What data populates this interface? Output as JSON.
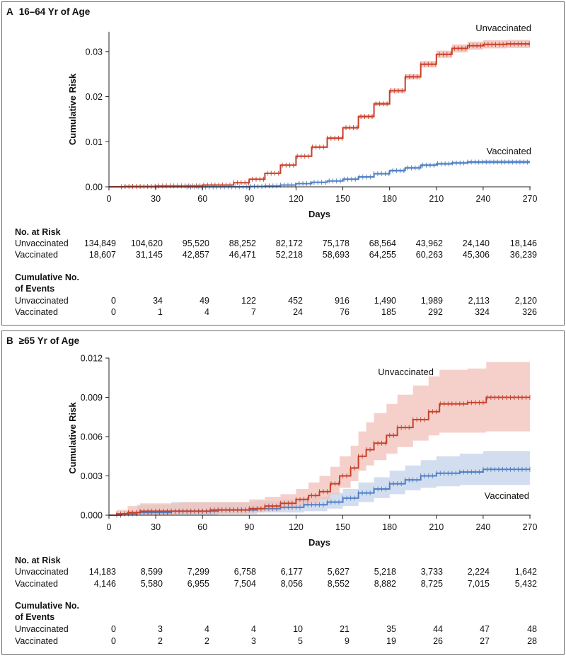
{
  "colors": {
    "unvaccinated": "#c8402a",
    "unvaccinated_band": "#f2c0b8",
    "vaccinated": "#4f7fc4",
    "vaccinated_band": "#c3d3ea",
    "axis": "#222222",
    "border": "#6e6e6e"
  },
  "panels": [
    {
      "letter": "A",
      "title": "16–64 Yr of Age",
      "risk_header": "No. at Risk",
      "events_header_1": "Cumulative No.",
      "events_header_2": "of Events",
      "rows_at_risk": [
        {
          "label": "Unvaccinated",
          "values": [
            "134,849",
            "104,620",
            "95,520",
            "88,252",
            "82,172",
            "75,178",
            "68,564",
            "43,962",
            "24,140",
            "18,146"
          ]
        },
        {
          "label": "Vaccinated",
          "values": [
            "18,607",
            "31,145",
            "42,857",
            "46,471",
            "52,218",
            "58,693",
            "64,255",
            "60,263",
            "45,306",
            "36,239"
          ]
        }
      ],
      "rows_events": [
        {
          "label": "Unvaccinated",
          "values": [
            "0",
            "34",
            "49",
            "122",
            "452",
            "916",
            "1,490",
            "1,989",
            "2,113",
            "2,120"
          ]
        },
        {
          "label": "Vaccinated",
          "values": [
            "0",
            "1",
            "4",
            "7",
            "24",
            "76",
            "185",
            "292",
            "324",
            "326"
          ]
        }
      ]
    },
    {
      "letter": "B",
      "title": "≥65 Yr of Age",
      "risk_header": "No. at Risk",
      "events_header_1": "Cumulative No.",
      "events_header_2": "of Events",
      "rows_at_risk": [
        {
          "label": "Unvaccinated",
          "values": [
            "14,183",
            "8,599",
            "7,299",
            "6,758",
            "6,177",
            "5,627",
            "5,218",
            "3,733",
            "2,224",
            "1,642"
          ]
        },
        {
          "label": "Vaccinated",
          "values": [
            "4,146",
            "5,580",
            "6,955",
            "7,504",
            "8,056",
            "8,552",
            "8,882",
            "8,725",
            "7,015",
            "5,432"
          ]
        }
      ],
      "rows_events": [
        {
          "label": "Unvaccinated",
          "values": [
            "0",
            "3",
            "4",
            "4",
            "10",
            "21",
            "35",
            "44",
            "47",
            "48"
          ]
        },
        {
          "label": "Vaccinated",
          "values": [
            "0",
            "2",
            "2",
            "3",
            "5",
            "9",
            "19",
            "26",
            "27",
            "28"
          ]
        }
      ]
    }
  ],
  "chart_data": [
    {
      "type": "line",
      "step": true,
      "xlabel": "Days",
      "ylabel": "Cumulative Risk",
      "xlim": [
        0,
        270
      ],
      "ylim": [
        0,
        0.035
      ],
      "xticks": [
        0,
        30,
        60,
        90,
        120,
        150,
        180,
        210,
        240,
        270
      ],
      "yticks": [
        0.0,
        0.01,
        0.02,
        0.03
      ],
      "ytick_labels": [
        "0.00",
        "0.01",
        "0.02",
        "0.03"
      ],
      "series": [
        {
          "name": "Unvaccinated",
          "x": [
            0,
            10,
            30,
            60,
            80,
            90,
            100,
            110,
            120,
            130,
            140,
            150,
            160,
            170,
            180,
            190,
            200,
            210,
            220,
            230,
            240,
            255,
            270
          ],
          "y": [
            0,
            0.0001,
            0.0002,
            0.0004,
            0.0009,
            0.0017,
            0.003,
            0.0048,
            0.0068,
            0.0088,
            0.0108,
            0.0131,
            0.0156,
            0.0184,
            0.0213,
            0.0244,
            0.0272,
            0.0294,
            0.0307,
            0.0313,
            0.0316,
            0.0317,
            0.0317
          ],
          "lower": [
            0,
            0.0001,
            0.0002,
            0.0004,
            0.0009,
            0.0016,
            0.0029,
            0.0046,
            0.0066,
            0.0086,
            0.0105,
            0.0128,
            0.0152,
            0.018,
            0.0208,
            0.0238,
            0.0265,
            0.0286,
            0.0298,
            0.0304,
            0.0307,
            0.0308,
            0.0308
          ],
          "upper": [
            0,
            0.0001,
            0.0002,
            0.0004,
            0.0009,
            0.0018,
            0.0031,
            0.005,
            0.007,
            0.009,
            0.0111,
            0.0134,
            0.016,
            0.0188,
            0.0218,
            0.025,
            0.0279,
            0.0302,
            0.0316,
            0.0322,
            0.0325,
            0.0326,
            0.0326
          ]
        },
        {
          "name": "Vaccinated",
          "x": [
            0,
            30,
            60,
            90,
            100,
            110,
            120,
            130,
            140,
            150,
            160,
            170,
            180,
            190,
            200,
            210,
            220,
            230,
            240,
            255,
            270
          ],
          "y": [
            0,
            0,
            0,
            0.0001,
            0.0002,
            0.0004,
            0.0007,
            0.001,
            0.0013,
            0.0017,
            0.0022,
            0.0029,
            0.0036,
            0.0042,
            0.0048,
            0.0051,
            0.0053,
            0.0055,
            0.0055,
            0.0055,
            0.0055
          ],
          "lower": [
            0,
            0,
            0,
            0.0001,
            0.0002,
            0.0003,
            0.0006,
            0.0009,
            0.0012,
            0.0015,
            0.002,
            0.0027,
            0.0033,
            0.0039,
            0.0045,
            0.0048,
            0.005,
            0.0051,
            0.0051,
            0.0051,
            0.0051
          ],
          "upper": [
            0,
            0,
            0,
            0.0001,
            0.0002,
            0.0005,
            0.0008,
            0.0011,
            0.0014,
            0.0019,
            0.0024,
            0.0031,
            0.0039,
            0.0045,
            0.0051,
            0.0054,
            0.0056,
            0.0058,
            0.0059,
            0.0059,
            0.0059
          ]
        }
      ],
      "annotations": [
        "Unvaccinated",
        "Vaccinated"
      ]
    },
    {
      "type": "line",
      "step": true,
      "xlabel": "Days",
      "ylabel": "Cumulative Risk",
      "xlim": [
        0,
        270
      ],
      "ylim": [
        0,
        0.012
      ],
      "xticks": [
        0,
        30,
        60,
        90,
        120,
        150,
        180,
        210,
        240,
        270
      ],
      "yticks": [
        0.0,
        0.003,
        0.006,
        0.009,
        0.012
      ],
      "ytick_labels": [
        "0.000",
        "0.003",
        "0.006",
        "0.009",
        "0.012"
      ],
      "series": [
        {
          "name": "Unvaccinated",
          "x": [
            0,
            5,
            12,
            20,
            45,
            65,
            90,
            100,
            110,
            120,
            128,
            135,
            142,
            148,
            155,
            160,
            165,
            170,
            178,
            185,
            195,
            205,
            212,
            230,
            242,
            270
          ],
          "y": [
            0,
            0.0001,
            0.0002,
            0.0003,
            0.0003,
            0.0004,
            0.0005,
            0.0007,
            0.0009,
            0.0012,
            0.0015,
            0.0018,
            0.0024,
            0.003,
            0.0036,
            0.0045,
            0.005,
            0.0055,
            0.0061,
            0.0067,
            0.0073,
            0.0079,
            0.0085,
            0.0086,
            0.009,
            0.009
          ],
          "lower": [
            0,
            0,
            0,
            0,
            0.0001,
            0.0001,
            0.0002,
            0.0003,
            0.0005,
            0.0007,
            0.0009,
            0.0012,
            0.0016,
            0.0021,
            0.0026,
            0.0034,
            0.0038,
            0.0042,
            0.0047,
            0.0052,
            0.0057,
            0.0061,
            0.0063,
            0.0063,
            0.0064,
            0.0064
          ],
          "upper": [
            0,
            0.0004,
            0.0007,
            0.0009,
            0.001,
            0.001,
            0.0012,
            0.0014,
            0.0016,
            0.002,
            0.0025,
            0.003,
            0.0037,
            0.0045,
            0.0053,
            0.0064,
            0.0071,
            0.0078,
            0.0085,
            0.0092,
            0.0099,
            0.0106,
            0.0111,
            0.0112,
            0.0117,
            0.0117
          ]
        },
        {
          "name": "Vaccinated",
          "x": [
            0,
            8,
            18,
            40,
            70,
            95,
            110,
            125,
            140,
            150,
            160,
            170,
            180,
            190,
            200,
            210,
            225,
            240,
            270
          ],
          "y": [
            0,
            0.0001,
            0.0002,
            0.0003,
            0.0004,
            0.0005,
            0.0006,
            0.0008,
            0.001,
            0.0013,
            0.0017,
            0.002,
            0.0024,
            0.0027,
            0.003,
            0.0032,
            0.0033,
            0.0035,
            0.0035
          ],
          "lower": [
            0,
            0,
            0,
            0,
            0.0001,
            0.0002,
            0.0002,
            0.0003,
            0.0005,
            0.0007,
            0.001,
            0.0013,
            0.0016,
            0.0019,
            0.0021,
            0.0022,
            0.0023,
            0.0023,
            0.0023
          ],
          "upper": [
            0,
            0.0003,
            0.0008,
            0.001,
            0.001,
            0.0011,
            0.0012,
            0.0014,
            0.0017,
            0.002,
            0.0025,
            0.0029,
            0.0034,
            0.0038,
            0.0042,
            0.0045,
            0.0047,
            0.0049,
            0.0049
          ]
        }
      ],
      "annotations": [
        "Unvaccinated",
        "Vaccinated"
      ]
    }
  ]
}
